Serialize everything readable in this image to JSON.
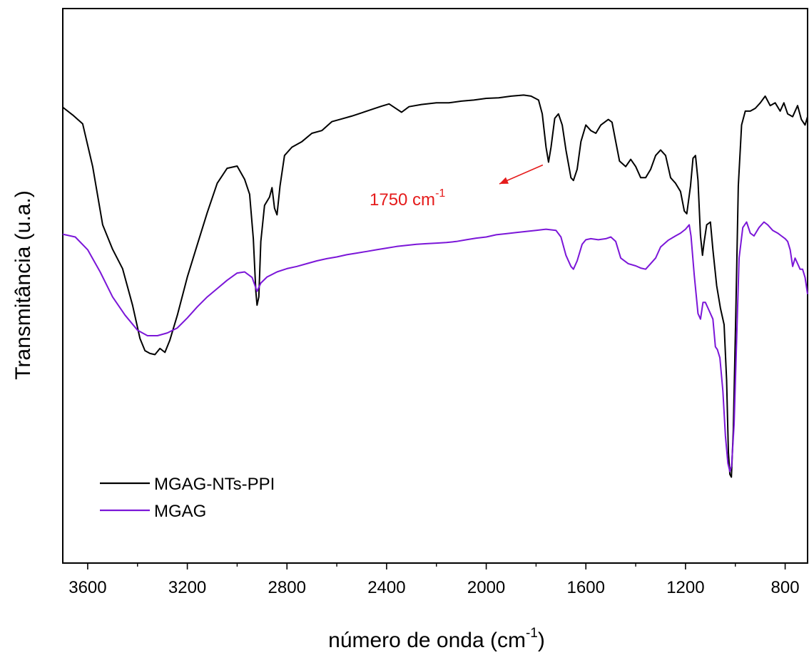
{
  "chart_data": {
    "type": "line",
    "xlabel": "número de onda (cm",
    "xlabel_sup": "-1",
    "xlabel_end": ")",
    "ylabel": "Transmitância (u.a.)",
    "xlim": [
      3700,
      710
    ],
    "x_reversed": true,
    "y_ticks_shown": false,
    "ylim": [
      0,
      100
    ],
    "xticks": [
      "3600",
      "3200",
      "2800",
      "2400",
      "2000",
      "1600",
      "1200",
      "800"
    ],
    "legend_position": "bottom-left",
    "series": [
      {
        "name": "MGAG-NTs-PPI",
        "color": "#000000",
        "points": [
          [
            3700,
            82.2
          ],
          [
            3660,
            80.8
          ],
          [
            3620,
            79.2
          ],
          [
            3580,
            71.5
          ],
          [
            3540,
            61.0
          ],
          [
            3500,
            56.6
          ],
          [
            3460,
            53.1
          ],
          [
            3420,
            46.5
          ],
          [
            3390,
            40.5
          ],
          [
            3370,
            38.3
          ],
          [
            3350,
            37.8
          ],
          [
            3330,
            37.6
          ],
          [
            3310,
            38.7
          ],
          [
            3290,
            38.0
          ],
          [
            3270,
            40.2
          ],
          [
            3240,
            44.7
          ],
          [
            3200,
            51.6
          ],
          [
            3160,
            57.4
          ],
          [
            3120,
            63.2
          ],
          [
            3080,
            68.5
          ],
          [
            3040,
            71.2
          ],
          [
            3000,
            71.6
          ],
          [
            2970,
            69.2
          ],
          [
            2950,
            66.5
          ],
          [
            2935,
            58.5
          ],
          [
            2925,
            49.0
          ],
          [
            2920,
            46.5
          ],
          [
            2913,
            48.0
          ],
          [
            2905,
            58.0
          ],
          [
            2890,
            64.5
          ],
          [
            2870,
            66.0
          ],
          [
            2860,
            67.7
          ],
          [
            2850,
            64.0
          ],
          [
            2840,
            62.8
          ],
          [
            2828,
            68.0
          ],
          [
            2810,
            73.5
          ],
          [
            2780,
            75.0
          ],
          [
            2740,
            76.0
          ],
          [
            2700,
            77.5
          ],
          [
            2660,
            78.0
          ],
          [
            2620,
            79.6
          ],
          [
            2580,
            80.1
          ],
          [
            2540,
            80.6
          ],
          [
            2500,
            81.2
          ],
          [
            2460,
            81.8
          ],
          [
            2420,
            82.4
          ],
          [
            2390,
            82.8
          ],
          [
            2360,
            81.9
          ],
          [
            2340,
            81.3
          ],
          [
            2310,
            82.3
          ],
          [
            2260,
            82.7
          ],
          [
            2200,
            83.0
          ],
          [
            2150,
            83.0
          ],
          [
            2100,
            83.3
          ],
          [
            2050,
            83.5
          ],
          [
            2000,
            83.8
          ],
          [
            1950,
            83.9
          ],
          [
            1900,
            84.2
          ],
          [
            1850,
            84.4
          ],
          [
            1820,
            84.2
          ],
          [
            1790,
            83.5
          ],
          [
            1775,
            81.0
          ],
          [
            1760,
            75.0
          ],
          [
            1750,
            72.3
          ],
          [
            1740,
            75.0
          ],
          [
            1725,
            80.2
          ],
          [
            1710,
            81.0
          ],
          [
            1695,
            79.0
          ],
          [
            1680,
            74.5
          ],
          [
            1660,
            69.5
          ],
          [
            1650,
            69.0
          ],
          [
            1635,
            71.0
          ],
          [
            1620,
            76.0
          ],
          [
            1600,
            79.0
          ],
          [
            1580,
            78.0
          ],
          [
            1560,
            77.5
          ],
          [
            1540,
            79.0
          ],
          [
            1510,
            80.0
          ],
          [
            1495,
            79.5
          ],
          [
            1480,
            76.0
          ],
          [
            1465,
            72.5
          ],
          [
            1440,
            71.5
          ],
          [
            1420,
            72.8
          ],
          [
            1400,
            71.5
          ],
          [
            1380,
            69.5
          ],
          [
            1360,
            69.5
          ],
          [
            1340,
            71.0
          ],
          [
            1320,
            73.5
          ],
          [
            1300,
            74.5
          ],
          [
            1280,
            73.5
          ],
          [
            1260,
            69.5
          ],
          [
            1240,
            68.5
          ],
          [
            1220,
            67.0
          ],
          [
            1205,
            63.5
          ],
          [
            1195,
            63.0
          ],
          [
            1180,
            68.0
          ],
          [
            1170,
            73.0
          ],
          [
            1160,
            73.5
          ],
          [
            1150,
            69.0
          ],
          [
            1140,
            59.0
          ],
          [
            1132,
            55.5
          ],
          [
            1125,
            58.0
          ],
          [
            1115,
            61.0
          ],
          [
            1100,
            61.5
          ],
          [
            1090,
            56.5
          ],
          [
            1075,
            50.0
          ],
          [
            1060,
            46.0
          ],
          [
            1045,
            43.0
          ],
          [
            1035,
            33.0
          ],
          [
            1028,
            20.0
          ],
          [
            1022,
            16.0
          ],
          [
            1016,
            15.5
          ],
          [
            1008,
            24.0
          ],
          [
            998,
            45.0
          ],
          [
            988,
            68.0
          ],
          [
            975,
            79.0
          ],
          [
            960,
            81.5
          ],
          [
            940,
            81.5
          ],
          [
            920,
            82.0
          ],
          [
            900,
            83.0
          ],
          [
            880,
            84.2
          ],
          [
            860,
            82.5
          ],
          [
            840,
            83.0
          ],
          [
            820,
            81.5
          ],
          [
            805,
            83.0
          ],
          [
            790,
            81.0
          ],
          [
            770,
            80.5
          ],
          [
            750,
            82.5
          ],
          [
            735,
            80.0
          ],
          [
            720,
            79.0
          ],
          [
            710,
            80.5
          ]
        ]
      },
      {
        "name": "MGAG",
        "color": "#7b16d8",
        "points": [
          [
            3700,
            59.3
          ],
          [
            3650,
            58.8
          ],
          [
            3600,
            56.5
          ],
          [
            3550,
            52.5
          ],
          [
            3500,
            48.0
          ],
          [
            3450,
            44.7
          ],
          [
            3400,
            42.0
          ],
          [
            3360,
            41.0
          ],
          [
            3320,
            41.0
          ],
          [
            3280,
            41.5
          ],
          [
            3240,
            42.4
          ],
          [
            3200,
            44.2
          ],
          [
            3160,
            46.2
          ],
          [
            3120,
            48.0
          ],
          [
            3080,
            49.5
          ],
          [
            3040,
            51.0
          ],
          [
            3000,
            52.3
          ],
          [
            2970,
            52.5
          ],
          [
            2940,
            51.5
          ],
          [
            2920,
            49.0
          ],
          [
            2905,
            50.5
          ],
          [
            2880,
            51.6
          ],
          [
            2840,
            52.5
          ],
          [
            2800,
            53.1
          ],
          [
            2760,
            53.5
          ],
          [
            2720,
            54.0
          ],
          [
            2680,
            54.5
          ],
          [
            2640,
            54.9
          ],
          [
            2600,
            55.2
          ],
          [
            2560,
            55.6
          ],
          [
            2520,
            55.9
          ],
          [
            2480,
            56.2
          ],
          [
            2440,
            56.5
          ],
          [
            2400,
            56.8
          ],
          [
            2360,
            57.1
          ],
          [
            2320,
            57.3
          ],
          [
            2280,
            57.5
          ],
          [
            2240,
            57.6
          ],
          [
            2200,
            57.7
          ],
          [
            2160,
            57.8
          ],
          [
            2120,
            58.0
          ],
          [
            2080,
            58.3
          ],
          [
            2040,
            58.6
          ],
          [
            2000,
            58.8
          ],
          [
            1960,
            59.2
          ],
          [
            1920,
            59.4
          ],
          [
            1880,
            59.6
          ],
          [
            1840,
            59.8
          ],
          [
            1800,
            60.0
          ],
          [
            1760,
            60.2
          ],
          [
            1720,
            60.0
          ],
          [
            1700,
            58.8
          ],
          [
            1680,
            55.5
          ],
          [
            1660,
            53.5
          ],
          [
            1650,
            53.0
          ],
          [
            1635,
            54.5
          ],
          [
            1615,
            57.5
          ],
          [
            1600,
            58.3
          ],
          [
            1580,
            58.5
          ],
          [
            1550,
            58.3
          ],
          [
            1520,
            58.5
          ],
          [
            1500,
            58.8
          ],
          [
            1480,
            58.0
          ],
          [
            1460,
            55.0
          ],
          [
            1430,
            54.0
          ],
          [
            1400,
            53.6
          ],
          [
            1380,
            53.2
          ],
          [
            1360,
            53.0
          ],
          [
            1340,
            54.0
          ],
          [
            1320,
            55.0
          ],
          [
            1300,
            57.0
          ],
          [
            1270,
            58.2
          ],
          [
            1240,
            59.0
          ],
          [
            1220,
            59.5
          ],
          [
            1200,
            60.2
          ],
          [
            1185,
            61.0
          ],
          [
            1178,
            59.0
          ],
          [
            1165,
            52.0
          ],
          [
            1150,
            45.0
          ],
          [
            1140,
            44.0
          ],
          [
            1130,
            47.0
          ],
          [
            1120,
            47.0
          ],
          [
            1105,
            45.5
          ],
          [
            1090,
            44.0
          ],
          [
            1080,
            39.0
          ],
          [
            1072,
            38.5
          ],
          [
            1062,
            37.0
          ],
          [
            1050,
            31.0
          ],
          [
            1040,
            23.0
          ],
          [
            1030,
            18.0
          ],
          [
            1022,
            16.5
          ],
          [
            1015,
            17.5
          ],
          [
            1005,
            25.0
          ],
          [
            995,
            40.0
          ],
          [
            985,
            55.0
          ],
          [
            970,
            60.5
          ],
          [
            955,
            61.5
          ],
          [
            940,
            59.5
          ],
          [
            925,
            59.0
          ],
          [
            905,
            60.5
          ],
          [
            885,
            61.5
          ],
          [
            870,
            61.0
          ],
          [
            850,
            60.0
          ],
          [
            830,
            59.5
          ],
          [
            815,
            59.0
          ],
          [
            800,
            58.5
          ],
          [
            790,
            58.0
          ],
          [
            780,
            56.5
          ],
          [
            770,
            53.5
          ],
          [
            760,
            55.0
          ],
          [
            750,
            54.0
          ],
          [
            740,
            53.0
          ],
          [
            730,
            53.0
          ],
          [
            720,
            51.5
          ],
          [
            710,
            48.5
          ]
        ]
      }
    ],
    "annotations": [
      {
        "text": "1750 cm",
        "sup": "-1",
        "color": "#e51b1b",
        "arrow_to": [
          1750,
          72.3
        ]
      }
    ]
  }
}
